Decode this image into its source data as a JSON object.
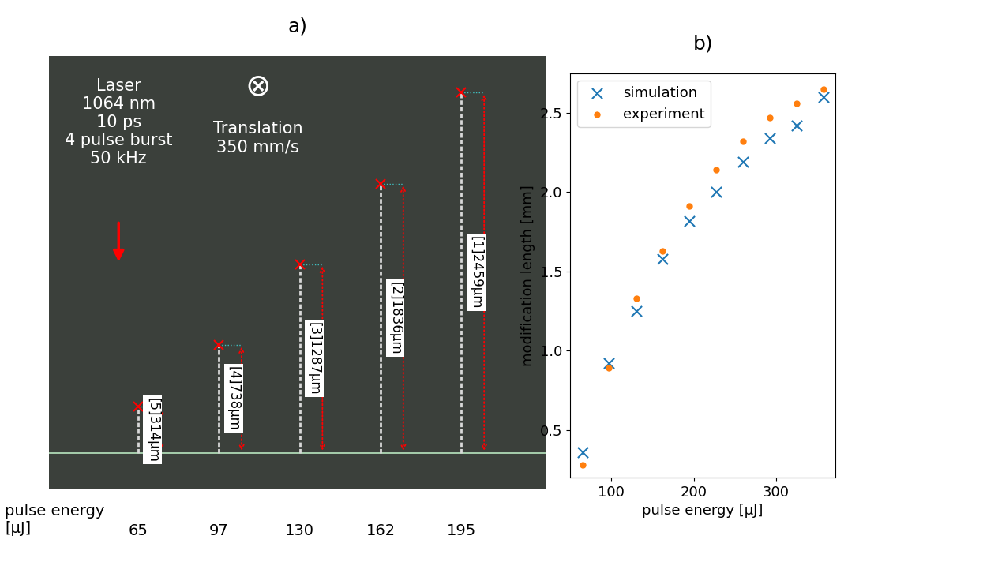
{
  "chart_data": {
    "type": "scatter",
    "title": "b)",
    "x_label": "pulse energy [µJ]",
    "y_label": "modification length [mm]",
    "x": [
      65,
      97,
      130,
      162,
      195,
      227,
      260,
      292,
      325,
      357
    ],
    "series": [
      {
        "name": "simulation",
        "color": "#1f77b4",
        "marker": "cross",
        "values": [
          0.36,
          0.92,
          1.25,
          1.58,
          1.82,
          2.0,
          2.19,
          2.34,
          2.42,
          2.6
        ]
      },
      {
        "name": "experiment",
        "color": "#ff7f0e",
        "marker": "circle",
        "values": [
          0.28,
          0.89,
          1.33,
          1.63,
          1.91,
          2.14,
          2.32,
          2.47,
          2.56,
          2.65
        ]
      }
    ],
    "xlim": [
      50,
      372
    ],
    "ylim": [
      0.2,
      2.75
    ],
    "xticks": [
      100,
      200,
      300
    ],
    "yticks": [
      {
        "value": 0.5,
        "label": "0.5"
      },
      {
        "value": 1,
        "label": "1.0"
      },
      {
        "value": 1.5,
        "label": "1.5"
      },
      {
        "value": 2,
        "label": "2.0"
      },
      {
        "value": 2.5,
        "label": "2.5"
      }
    ],
    "legend": "upper left",
    "grid": false
  },
  "photo_panel": {
    "label": "a)",
    "laser_text": [
      "Laser",
      "1064 nm",
      "10 ps",
      "4 pulse burst",
      "50 kHz"
    ],
    "translation_symbol": "⊗",
    "translation_text": [
      "Translation",
      "350 mm/s"
    ],
    "pulse_energy_label": [
      "pulse energy",
      "[µJ]"
    ],
    "modifications": [
      {
        "pulse_energy": 65,
        "length": 314,
        "label": "[5]314µm"
      },
      {
        "pulse_energy": 97,
        "length": 738,
        "label": "[4]738µm"
      },
      {
        "pulse_energy": 130,
        "length": 1287,
        "label": "[3]1287µm"
      },
      {
        "pulse_energy": 162,
        "length": 1836,
        "label": "[2]1836µm"
      },
      {
        "pulse_energy": 195,
        "length": 2459,
        "label": "[1]2459µm"
      }
    ]
  }
}
